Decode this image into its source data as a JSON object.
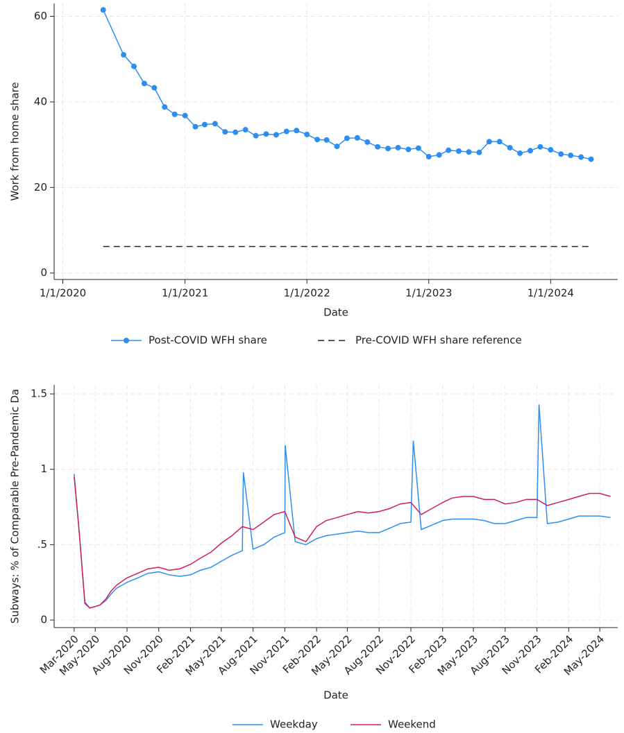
{
  "chart_data": [
    {
      "type": "line",
      "xlabel": "Date",
      "ylabel": "Work from home share",
      "xlim": [
        "2019-12-06",
        "2024-07-20"
      ],
      "ylim": [
        -1.5,
        63
      ],
      "xticks": [
        {
          "value": "2020-01-01",
          "label": "1/1/2020"
        },
        {
          "value": "2021-01-01",
          "label": "1/1/2021"
        },
        {
          "value": "2022-01-01",
          "label": "1/1/2022"
        },
        {
          "value": "2023-01-01",
          "label": "1/1/2023"
        },
        {
          "value": "2024-01-01",
          "label": "1/1/2024"
        }
      ],
      "yticks": [
        0,
        20,
        40,
        60
      ],
      "grid": true,
      "legend": "bottom",
      "series": [
        {
          "name": "Post-COVID WFH share",
          "color": "#2e8ef0",
          "marker": "circle",
          "dash": "solid",
          "x": [
            "2020-05-01",
            "2020-07-01",
            "2020-08-01",
            "2020-09-01",
            "2020-10-01",
            "2020-11-01",
            "2020-12-01",
            "2021-01-01",
            "2021-02-01",
            "2021-03-01",
            "2021-04-01",
            "2021-05-01",
            "2021-06-01",
            "2021-07-01",
            "2021-08-01",
            "2021-09-01",
            "2021-10-01",
            "2021-11-01",
            "2021-12-01",
            "2022-01-01",
            "2022-02-01",
            "2022-03-01",
            "2022-04-01",
            "2022-05-01",
            "2022-06-01",
            "2022-07-01",
            "2022-08-01",
            "2022-09-01",
            "2022-10-01",
            "2022-11-01",
            "2022-12-01",
            "2023-01-01",
            "2023-02-01",
            "2023-03-01",
            "2023-04-01",
            "2023-05-01",
            "2023-06-01",
            "2023-07-01",
            "2023-08-01",
            "2023-09-01",
            "2023-10-01",
            "2023-11-01",
            "2023-12-01",
            "2024-01-01",
            "2024-02-01",
            "2024-03-01",
            "2024-04-01",
            "2024-05-01"
          ],
          "values": [
            61.5,
            51,
            48.3,
            44.3,
            43.3,
            38.8,
            37.1,
            36.8,
            34.2,
            34.7,
            34.9,
            33,
            32.9,
            33.5,
            32.1,
            32.5,
            32.3,
            33.1,
            33.3,
            32.4,
            31.2,
            31.1,
            29.6,
            31.5,
            31.6,
            30.6,
            29.5,
            29.1,
            29.3,
            28.9,
            29.2,
            27.2,
            27.6,
            28.7,
            28.5,
            28.3,
            28.2,
            30.7,
            30.7,
            29.3,
            28,
            28.6,
            29.5,
            28.8,
            27.8,
            27.5,
            27.1,
            26.6
          ]
        },
        {
          "name": "Pre-COVID WFH share reference",
          "color": "#222222",
          "marker": "none",
          "dash": "dashed",
          "x": [
            "2020-05-01",
            "2024-05-01"
          ],
          "values": [
            6.2,
            6.2
          ]
        }
      ]
    },
    {
      "type": "line",
      "xlabel": "Date",
      "ylabel": "Subways: % of Comparable Pre-Pandemic Da",
      "xlim": [
        "2020-01-03",
        "2024-06-22"
      ],
      "ylim": [
        -0.05,
        1.56
      ],
      "xticks": [
        {
          "value": "2020-03-01",
          "label": "Mar-2020"
        },
        {
          "value": "2020-05-01",
          "label": "May-2020"
        },
        {
          "value": "2020-08-01",
          "label": "Aug-2020"
        },
        {
          "value": "2020-11-01",
          "label": "Nov-2020"
        },
        {
          "value": "2021-02-01",
          "label": "Feb-2021"
        },
        {
          "value": "2021-05-01",
          "label": "May-2021"
        },
        {
          "value": "2021-08-01",
          "label": "Aug-2021"
        },
        {
          "value": "2021-11-01",
          "label": "Nov-2021"
        },
        {
          "value": "2022-02-01",
          "label": "Feb-2022"
        },
        {
          "value": "2022-05-01",
          "label": "May-2022"
        },
        {
          "value": "2022-08-01",
          "label": "Aug-2022"
        },
        {
          "value": "2022-11-01",
          "label": "Nov-2022"
        },
        {
          "value": "2023-02-01",
          "label": "Feb-2023"
        },
        {
          "value": "2023-05-01",
          "label": "May-2023"
        },
        {
          "value": "2023-08-01",
          "label": "Aug-2023"
        },
        {
          "value": "2023-11-01",
          "label": "Nov-2023"
        },
        {
          "value": "2024-02-01",
          "label": "Feb-2024"
        },
        {
          "value": "2024-05-01",
          "label": "May-2024"
        }
      ],
      "yticks": [
        0,
        {
          "value": 0.5,
          "label": ".5"
        },
        1,
        1.5
      ],
      "grid": true,
      "legend": "bottom",
      "series": [
        {
          "name": "Weekday",
          "color": "#2e8ef0",
          "marker": "none",
          "dash": "solid",
          "x": [
            "2020-03-01",
            "2020-03-15",
            "2020-04-01",
            "2020-04-15",
            "2020-05-01",
            "2020-05-15",
            "2020-06-01",
            "2020-06-15",
            "2020-07-01",
            "2020-08-01",
            "2020-09-01",
            "2020-10-01",
            "2020-11-01",
            "2020-12-01",
            "2021-01-01",
            "2021-02-01",
            "2021-03-01",
            "2021-04-01",
            "2021-05-01",
            "2021-06-01",
            "2021-07-01",
            "2021-07-04",
            "2021-08-01",
            "2021-09-01",
            "2021-10-01",
            "2021-11-01",
            "2021-11-02",
            "2021-12-01",
            "2022-01-01",
            "2022-02-01",
            "2022-03-01",
            "2022-04-01",
            "2022-05-01",
            "2022-06-01",
            "2022-07-01",
            "2022-08-01",
            "2022-09-01",
            "2022-10-01",
            "2022-11-01",
            "2022-11-08",
            "2022-12-01",
            "2023-01-01",
            "2023-02-01",
            "2023-03-01",
            "2023-04-01",
            "2023-05-01",
            "2023-06-01",
            "2023-07-01",
            "2023-08-01",
            "2023-09-01",
            "2023-10-01",
            "2023-11-01",
            "2023-11-07",
            "2023-12-01",
            "2024-01-01",
            "2024-02-01",
            "2024-03-01",
            "2024-04-01",
            "2024-05-01",
            "2024-06-01"
          ],
          "values": [
            0.97,
            0.6,
            0.12,
            0.08,
            0.09,
            0.1,
            0.13,
            0.17,
            0.21,
            0.25,
            0.28,
            0.31,
            0.32,
            0.3,
            0.29,
            0.3,
            0.33,
            0.35,
            0.39,
            0.43,
            0.46,
            0.98,
            0.47,
            0.5,
            0.55,
            0.58,
            1.16,
            0.52,
            0.5,
            0.54,
            0.56,
            0.57,
            0.58,
            0.59,
            0.58,
            0.58,
            0.61,
            0.64,
            0.65,
            1.19,
            0.6,
            0.63,
            0.66,
            0.67,
            0.67,
            0.67,
            0.66,
            0.64,
            0.64,
            0.66,
            0.68,
            0.68,
            1.43,
            0.64,
            0.65,
            0.67,
            0.69,
            0.69,
            0.69,
            0.68
          ]
        },
        {
          "name": "Weekend",
          "color": "#d11d5a",
          "marker": "none",
          "dash": "solid",
          "x": [
            "2020-03-01",
            "2020-03-15",
            "2020-04-01",
            "2020-04-15",
            "2020-05-01",
            "2020-05-15",
            "2020-06-01",
            "2020-06-15",
            "2020-07-01",
            "2020-08-01",
            "2020-09-01",
            "2020-10-01",
            "2020-11-01",
            "2020-12-01",
            "2021-01-01",
            "2021-02-01",
            "2021-03-01",
            "2021-04-01",
            "2021-05-01",
            "2021-06-01",
            "2021-07-01",
            "2021-08-01",
            "2021-09-01",
            "2021-10-01",
            "2021-11-01",
            "2021-12-01",
            "2022-01-01",
            "2022-02-01",
            "2022-03-01",
            "2022-04-01",
            "2022-05-01",
            "2022-06-01",
            "2022-07-01",
            "2022-08-01",
            "2022-09-01",
            "2022-10-01",
            "2022-11-01",
            "2022-12-01",
            "2023-01-01",
            "2023-02-01",
            "2023-03-01",
            "2023-04-01",
            "2023-05-01",
            "2023-06-01",
            "2023-07-01",
            "2023-08-01",
            "2023-09-01",
            "2023-10-01",
            "2023-11-01",
            "2023-12-01",
            "2024-01-01",
            "2024-02-01",
            "2024-03-01",
            "2024-04-01",
            "2024-05-01",
            "2024-06-01"
          ],
          "values": [
            0.95,
            0.6,
            0.11,
            0.08,
            0.09,
            0.1,
            0.14,
            0.19,
            0.23,
            0.28,
            0.31,
            0.34,
            0.35,
            0.33,
            0.34,
            0.37,
            0.41,
            0.45,
            0.51,
            0.56,
            0.62,
            0.6,
            0.65,
            0.7,
            0.72,
            0.55,
            0.52,
            0.62,
            0.66,
            0.68,
            0.7,
            0.72,
            0.71,
            0.72,
            0.74,
            0.77,
            0.78,
            0.7,
            0.74,
            0.78,
            0.81,
            0.82,
            0.82,
            0.8,
            0.8,
            0.77,
            0.78,
            0.8,
            0.8,
            0.76,
            0.78,
            0.8,
            0.82,
            0.84,
            0.84,
            0.82
          ]
        }
      ]
    }
  ]
}
